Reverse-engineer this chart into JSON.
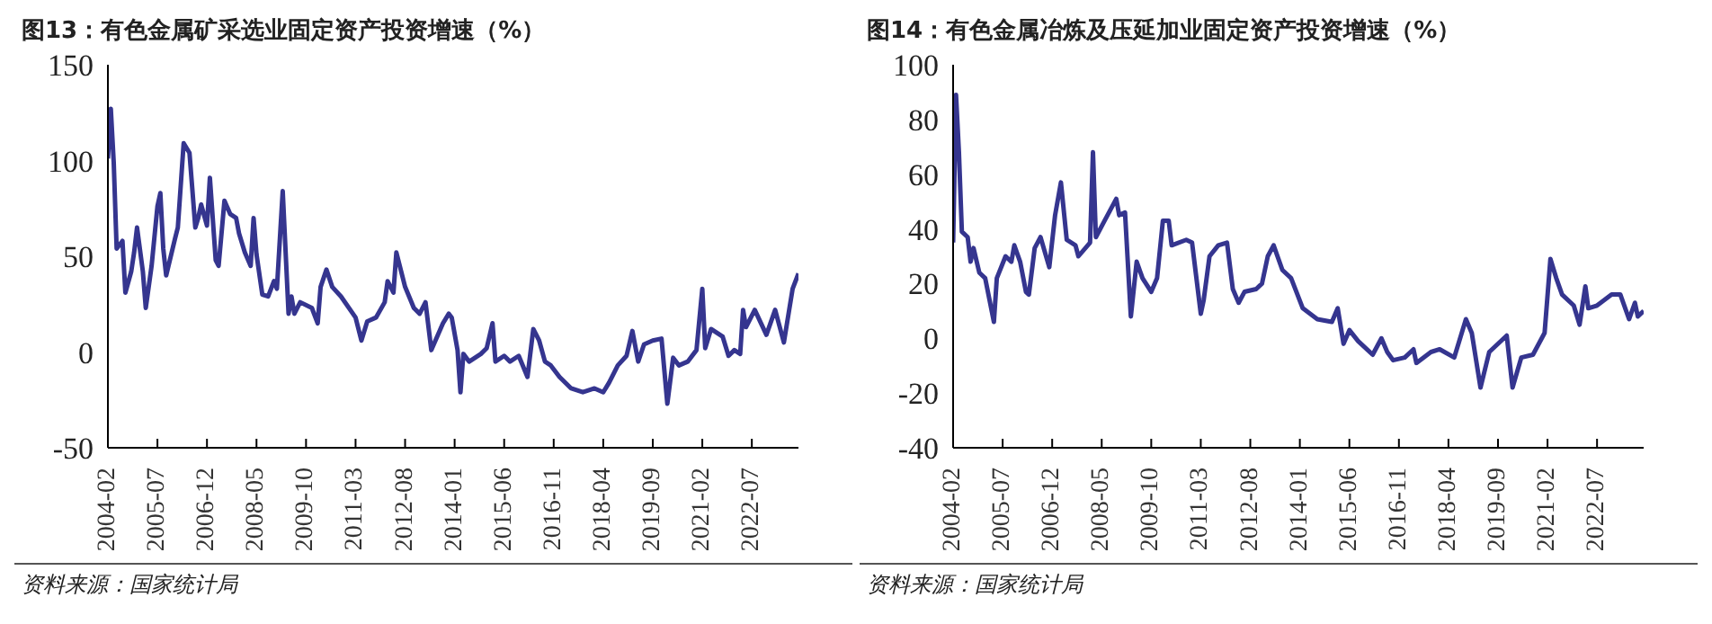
{
  "chart_data": [
    {
      "type": "line",
      "title": "图13：有色金属矿采选业固定资产投资增速（%）",
      "annotations": [
        "资料来源：国家统计局"
      ],
      "color": "#35358f",
      "marker": "none",
      "xlim": [
        "2004-02",
        "2023-11"
      ],
      "xticks": [
        "2004-02",
        "2005-07",
        "2006-12",
        "2008-05",
        "2009-10",
        "2011-03",
        "2012-08",
        "2014-01",
        "2015-06",
        "2016-11",
        "2018-04",
        "2019-09",
        "2021-02",
        "2022-07"
      ],
      "ylim": [
        -50,
        150
      ],
      "yticks": [
        -50,
        0,
        50,
        100,
        150
      ],
      "x": [
        "2004-02",
        "2004-03",
        "2004-04",
        "2004-05",
        "2004-07",
        "2004-08",
        "2004-10",
        "2004-11",
        "2004-12",
        "2005-02",
        "2005-03",
        "2005-05",
        "2005-07",
        "2005-08",
        "2005-09",
        "2005-10",
        "2006-01",
        "2006-02",
        "2006-04",
        "2006-06",
        "2006-08",
        "2006-09",
        "2006-10",
        "2006-12",
        "2007-01",
        "2007-03",
        "2007-04",
        "2007-06",
        "2007-08",
        "2007-10",
        "2007-11",
        "2008-01",
        "2008-03",
        "2008-04",
        "2008-05",
        "2008-07",
        "2008-09",
        "2008-11",
        "2008-12",
        "2009-02",
        "2009-04",
        "2009-05",
        "2009-06",
        "2009-08",
        "2009-12",
        "2010-02",
        "2010-03",
        "2010-05",
        "2010-07",
        "2010-10",
        "2011-03",
        "2011-05",
        "2011-07",
        "2011-10",
        "2012-01",
        "2012-02",
        "2012-04",
        "2012-05",
        "2012-08",
        "2012-11",
        "2013-01",
        "2013-03",
        "2013-05",
        "2013-09",
        "2013-11",
        "2013-12",
        "2014-02",
        "2014-03",
        "2014-04",
        "2014-06",
        "2014-10",
        "2014-12",
        "2015-02",
        "2015-03",
        "2015-06",
        "2015-08",
        "2015-11",
        "2016-02",
        "2016-04",
        "2016-06",
        "2016-08",
        "2016-10",
        "2017-01",
        "2017-05",
        "2017-09",
        "2018-01",
        "2018-04",
        "2018-06",
        "2018-09",
        "2018-12",
        "2019-02",
        "2019-04",
        "2019-06",
        "2019-09",
        "2019-12",
        "2020-02",
        "2020-04",
        "2020-06",
        "2020-09",
        "2020-12",
        "2021-02",
        "2021-03",
        "2021-05",
        "2021-09",
        "2021-11",
        "2022-01",
        "2022-03",
        "2022-04",
        "2022-05",
        "2022-08",
        "2022-12",
        "2023-03",
        "2023-06",
        "2023-09",
        "2023-11"
      ],
      "values": [
        101,
        127,
        99,
        54,
        58,
        31,
        42,
        52,
        65,
        42,
        23,
        45,
        76,
        83,
        54,
        40,
        59,
        65,
        109,
        104,
        65,
        70,
        77,
        66,
        91,
        48,
        45,
        79,
        72,
        70,
        62,
        52,
        45,
        70,
        51,
        30,
        29,
        37,
        33,
        84,
        20,
        29,
        20,
        26,
        23,
        15,
        34,
        43,
        34,
        29,
        18,
        6,
        16,
        18,
        26,
        37,
        31,
        52,
        34,
        23,
        20,
        26,
        1,
        15,
        20,
        18,
        1,
        -21,
        -1,
        -5,
        -1,
        2,
        15,
        -5,
        -2,
        -5,
        -2,
        -13,
        12,
        6,
        -5,
        -7,
        -13,
        -19,
        -21,
        -19,
        -21,
        -16,
        -7,
        -2,
        11,
        -5,
        4,
        6,
        7,
        -27,
        -3,
        -7,
        -5,
        1,
        33,
        2,
        12,
        8,
        -2,
        1,
        -1,
        22,
        13,
        22,
        9,
        22,
        5,
        33,
        41
      ]
    },
    {
      "type": "line",
      "title": "图14：有色金属冶炼及压延加业固定资产投资增速（%）",
      "annotations": [
        "资料来源：国家统计局"
      ],
      "color": "#35358f",
      "marker": "none",
      "xlim": [
        "2004-02",
        "2023-11"
      ],
      "xticks": [
        "2004-02",
        "2005-07",
        "2006-12",
        "2008-05",
        "2009-10",
        "2011-03",
        "2012-08",
        "2014-01",
        "2015-06",
        "2016-11",
        "2018-04",
        "2019-09",
        "2021-02",
        "2022-07"
      ],
      "ylim": [
        -40,
        100
      ],
      "yticks": [
        -40,
        -20,
        0,
        20,
        40,
        60,
        80,
        100
      ],
      "x": [
        "2004-02",
        "2004-03",
        "2004-04",
        "2004-05",
        "2004-07",
        "2004-08",
        "2004-09",
        "2004-11",
        "2005-01",
        "2005-04",
        "2005-05",
        "2005-08",
        "2005-10",
        "2005-11",
        "2006-01",
        "2006-03",
        "2006-04",
        "2006-06",
        "2006-08",
        "2006-11",
        "2007-01",
        "2007-03",
        "2007-05",
        "2007-08",
        "2007-09",
        "2008-01",
        "2008-02",
        "2008-03",
        "2008-06",
        "2008-10",
        "2008-11",
        "2009-01",
        "2009-03",
        "2009-05",
        "2009-07",
        "2009-10",
        "2009-12",
        "2010-02",
        "2010-04",
        "2010-05",
        "2010-10",
        "2010-12",
        "2011-03",
        "2011-04",
        "2011-06",
        "2011-09",
        "2011-12",
        "2012-02",
        "2012-04",
        "2012-06",
        "2012-10",
        "2012-12",
        "2013-02",
        "2013-04",
        "2013-07",
        "2013-10",
        "2014-02",
        "2014-07",
        "2014-12",
        "2015-02",
        "2015-04",
        "2015-06",
        "2015-09",
        "2016-02",
        "2016-05",
        "2016-07",
        "2016-09",
        "2017-01",
        "2017-04",
        "2017-05",
        "2017-10",
        "2018-01",
        "2018-06",
        "2018-10",
        "2018-12",
        "2019-03",
        "2019-06",
        "2019-12",
        "2020-02",
        "2020-05",
        "2020-09",
        "2021-01",
        "2021-03",
        "2021-05",
        "2021-07",
        "2021-11",
        "2022-01",
        "2022-03",
        "2022-04",
        "2022-07",
        "2022-12",
        "2023-03",
        "2023-06",
        "2023-08",
        "2023-09",
        "2023-11"
      ],
      "values": [
        35,
        89,
        68,
        39,
        37,
        28,
        33,
        24,
        22,
        6,
        22,
        30,
        28,
        34,
        28,
        17,
        16,
        33,
        37,
        26,
        45,
        57,
        36,
        34,
        30,
        35,
        68,
        37,
        43,
        51,
        45,
        46,
        8,
        28,
        22,
        17,
        22,
        43,
        43,
        34,
        36,
        35,
        9,
        14,
        30,
        34,
        35,
        18,
        13,
        17,
        18,
        20,
        30,
        34,
        25,
        22,
        11,
        7,
        6,
        11,
        -2,
        3,
        -1,
        -6,
        0,
        -5,
        -8,
        -7,
        -4,
        -9,
        -5,
        -4,
        -7,
        7,
        2,
        -18,
        -5,
        1,
        -18,
        -7,
        -6,
        2,
        29,
        22,
        16,
        12,
        5,
        19,
        11,
        12,
        16,
        16,
        7,
        13,
        8,
        10
      ]
    }
  ]
}
